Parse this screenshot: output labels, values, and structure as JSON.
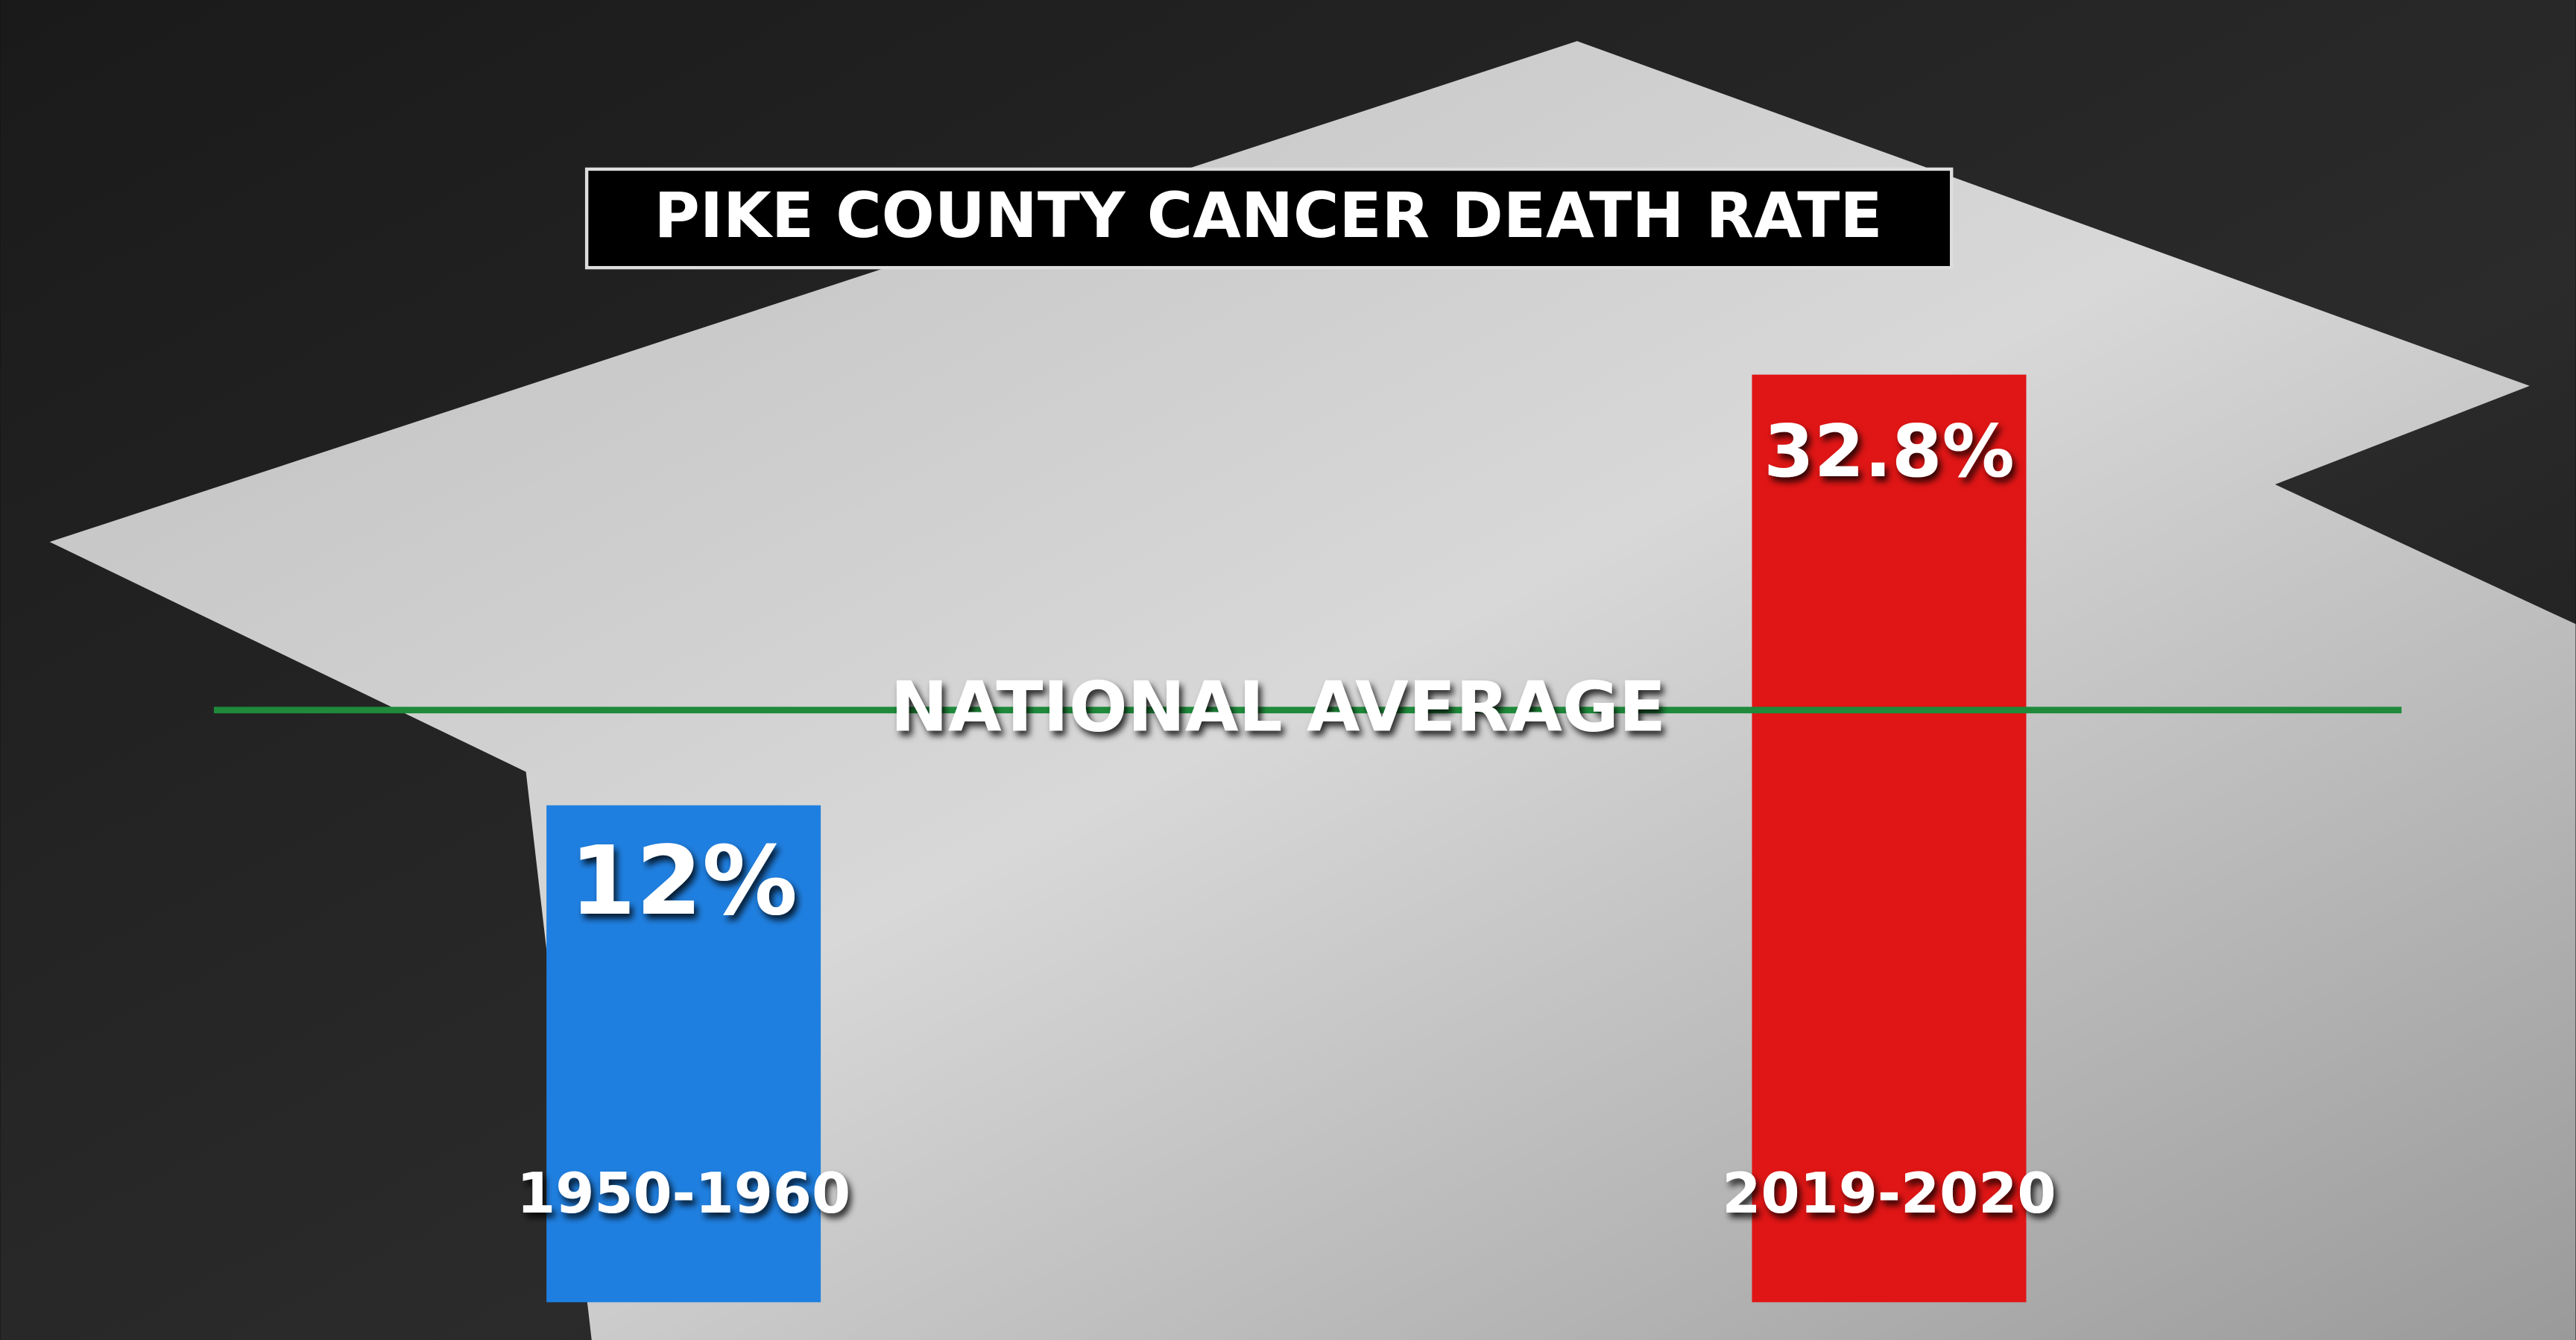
{
  "chart_data": {
    "type": "bar",
    "title": "PIKE COUNTY CANCER DEATH RATE",
    "categories": [
      "1950-1960",
      "2019-2020"
    ],
    "values": [
      12,
      32.8
    ],
    "value_labels": [
      "12%",
      "32.8%"
    ],
    "colors": [
      "#1f7fe0",
      "#e01515"
    ],
    "ylim": [
      -12,
      34
    ],
    "reference_line": {
      "label": "NATIONAL AVERAGE",
      "value": 16.6,
      "color": "#1e8a3a"
    }
  }
}
